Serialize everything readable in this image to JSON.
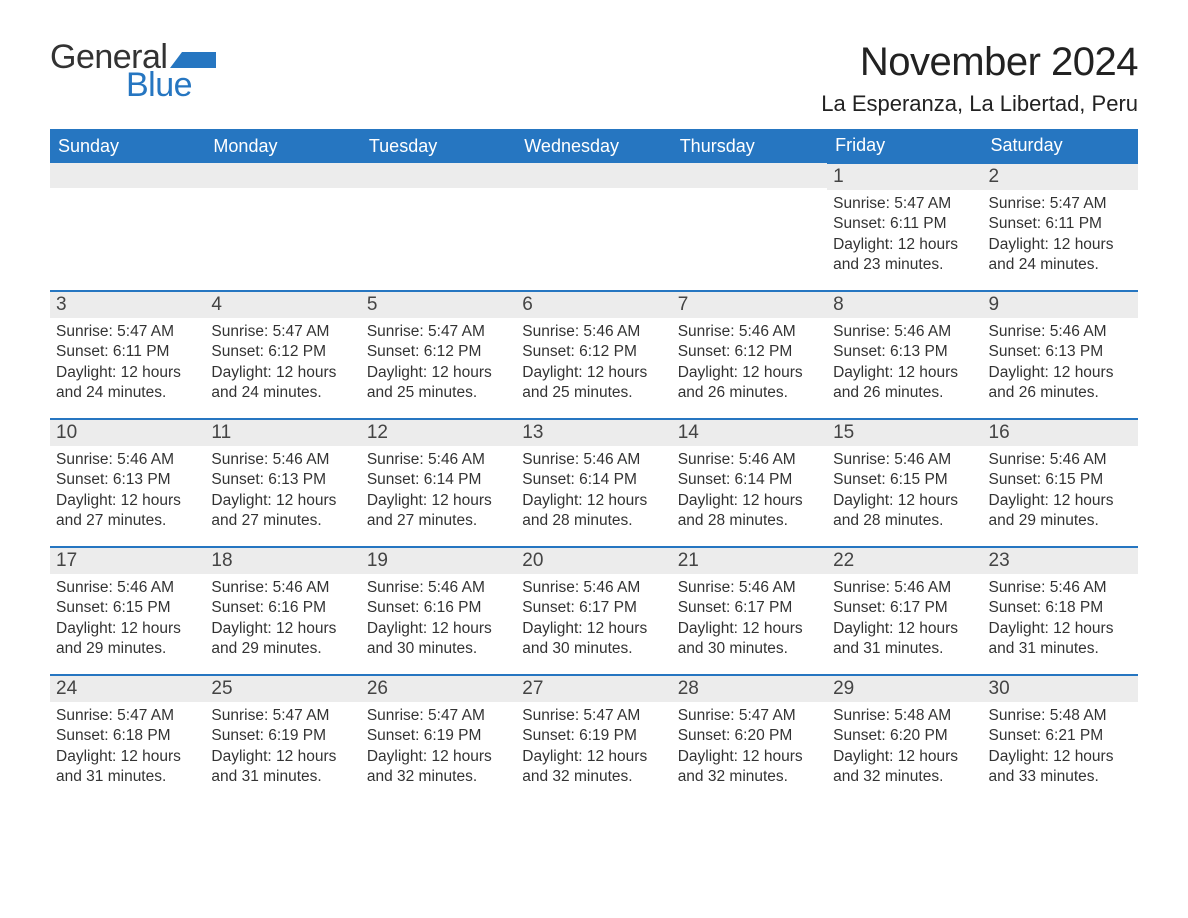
{
  "brand": {
    "word1": "General",
    "word2": "Blue",
    "text_color": "#333333",
    "accent_color": "#2676c1"
  },
  "title": "November 2024",
  "location": "La Esperanza, La Libertad, Peru",
  "colors": {
    "header_bg": "#2676c1",
    "header_text": "#ffffff",
    "daynum_bg": "#ececec",
    "cell_border": "#2676c1",
    "body_text": "#333333",
    "page_bg": "#ffffff"
  },
  "day_headers": [
    "Sunday",
    "Monday",
    "Tuesday",
    "Wednesday",
    "Thursday",
    "Friday",
    "Saturday"
  ],
  "labels": {
    "sunrise": "Sunrise:",
    "sunset": "Sunset:",
    "daylight": "Daylight:"
  },
  "weeks": [
    [
      null,
      null,
      null,
      null,
      null,
      {
        "n": "1",
        "sunrise": "5:47 AM",
        "sunset": "6:11 PM",
        "daylight": "12 hours and 23 minutes."
      },
      {
        "n": "2",
        "sunrise": "5:47 AM",
        "sunset": "6:11 PM",
        "daylight": "12 hours and 24 minutes."
      }
    ],
    [
      {
        "n": "3",
        "sunrise": "5:47 AM",
        "sunset": "6:11 PM",
        "daylight": "12 hours and 24 minutes."
      },
      {
        "n": "4",
        "sunrise": "5:47 AM",
        "sunset": "6:12 PM",
        "daylight": "12 hours and 24 minutes."
      },
      {
        "n": "5",
        "sunrise": "5:47 AM",
        "sunset": "6:12 PM",
        "daylight": "12 hours and 25 minutes."
      },
      {
        "n": "6",
        "sunrise": "5:46 AM",
        "sunset": "6:12 PM",
        "daylight": "12 hours and 25 minutes."
      },
      {
        "n": "7",
        "sunrise": "5:46 AM",
        "sunset": "6:12 PM",
        "daylight": "12 hours and 26 minutes."
      },
      {
        "n": "8",
        "sunrise": "5:46 AM",
        "sunset": "6:13 PM",
        "daylight": "12 hours and 26 minutes."
      },
      {
        "n": "9",
        "sunrise": "5:46 AM",
        "sunset": "6:13 PM",
        "daylight": "12 hours and 26 minutes."
      }
    ],
    [
      {
        "n": "10",
        "sunrise": "5:46 AM",
        "sunset": "6:13 PM",
        "daylight": "12 hours and 27 minutes."
      },
      {
        "n": "11",
        "sunrise": "5:46 AM",
        "sunset": "6:13 PM",
        "daylight": "12 hours and 27 minutes."
      },
      {
        "n": "12",
        "sunrise": "5:46 AM",
        "sunset": "6:14 PM",
        "daylight": "12 hours and 27 minutes."
      },
      {
        "n": "13",
        "sunrise": "5:46 AM",
        "sunset": "6:14 PM",
        "daylight": "12 hours and 28 minutes."
      },
      {
        "n": "14",
        "sunrise": "5:46 AM",
        "sunset": "6:14 PM",
        "daylight": "12 hours and 28 minutes."
      },
      {
        "n": "15",
        "sunrise": "5:46 AM",
        "sunset": "6:15 PM",
        "daylight": "12 hours and 28 minutes."
      },
      {
        "n": "16",
        "sunrise": "5:46 AM",
        "sunset": "6:15 PM",
        "daylight": "12 hours and 29 minutes."
      }
    ],
    [
      {
        "n": "17",
        "sunrise": "5:46 AM",
        "sunset": "6:15 PM",
        "daylight": "12 hours and 29 minutes."
      },
      {
        "n": "18",
        "sunrise": "5:46 AM",
        "sunset": "6:16 PM",
        "daylight": "12 hours and 29 minutes."
      },
      {
        "n": "19",
        "sunrise": "5:46 AM",
        "sunset": "6:16 PM",
        "daylight": "12 hours and 30 minutes."
      },
      {
        "n": "20",
        "sunrise": "5:46 AM",
        "sunset": "6:17 PM",
        "daylight": "12 hours and 30 minutes."
      },
      {
        "n": "21",
        "sunrise": "5:46 AM",
        "sunset": "6:17 PM",
        "daylight": "12 hours and 30 minutes."
      },
      {
        "n": "22",
        "sunrise": "5:46 AM",
        "sunset": "6:17 PM",
        "daylight": "12 hours and 31 minutes."
      },
      {
        "n": "23",
        "sunrise": "5:46 AM",
        "sunset": "6:18 PM",
        "daylight": "12 hours and 31 minutes."
      }
    ],
    [
      {
        "n": "24",
        "sunrise": "5:47 AM",
        "sunset": "6:18 PM",
        "daylight": "12 hours and 31 minutes."
      },
      {
        "n": "25",
        "sunrise": "5:47 AM",
        "sunset": "6:19 PM",
        "daylight": "12 hours and 31 minutes."
      },
      {
        "n": "26",
        "sunrise": "5:47 AM",
        "sunset": "6:19 PM",
        "daylight": "12 hours and 32 minutes."
      },
      {
        "n": "27",
        "sunrise": "5:47 AM",
        "sunset": "6:19 PM",
        "daylight": "12 hours and 32 minutes."
      },
      {
        "n": "28",
        "sunrise": "5:47 AM",
        "sunset": "6:20 PM",
        "daylight": "12 hours and 32 minutes."
      },
      {
        "n": "29",
        "sunrise": "5:48 AM",
        "sunset": "6:20 PM",
        "daylight": "12 hours and 32 minutes."
      },
      {
        "n": "30",
        "sunrise": "5:48 AM",
        "sunset": "6:21 PM",
        "daylight": "12 hours and 33 minutes."
      }
    ]
  ]
}
